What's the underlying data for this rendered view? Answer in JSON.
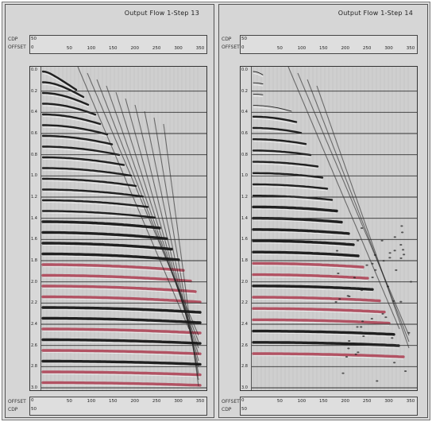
{
  "panels": [
    {
      "title": "Output Flow 1-Step 13",
      "header_rows": [
        "CDP",
        "OFFSET"
      ],
      "header_first": [
        "50",
        "0"
      ],
      "offset_ticks": [
        "0",
        "50",
        "100",
        "150",
        "200",
        "250",
        "300",
        "350"
      ],
      "time_ticks": [
        "0.0",
        "0.2",
        "0.4",
        "0.6",
        "0.8",
        "1.0",
        "1.2",
        "1.4",
        "1.6",
        "1.8",
        "2.0",
        "2.2",
        "2.4",
        "2.6",
        "2.8",
        "3.0"
      ],
      "footer_rows": [
        "OFFSET",
        "CDP"
      ],
      "footer_first": [
        "0",
        "50"
      ]
    },
    {
      "title": "Output Flow 1-Step 14",
      "header_rows": [
        "CDP",
        "OFFSET"
      ],
      "header_first": [
        "50",
        "0"
      ],
      "offset_ticks": [
        "0",
        "50",
        "100",
        "150",
        "200",
        "250",
        "300",
        "350"
      ],
      "time_ticks": [
        "0.0",
        "0.2",
        "0.4",
        "0.6",
        "0.8",
        "1.0",
        "1.2",
        "1.4",
        "1.6",
        "1.8",
        "2.0",
        "2.2",
        "2.4",
        "2.6",
        "2.8",
        "3.0"
      ],
      "footer_rows": [
        "OFFSET",
        "CDP"
      ],
      "footer_first": [
        "0",
        "50"
      ]
    }
  ],
  "colors": {
    "trough": "#111111",
    "peak_hi": "#b0485a",
    "background": "#cfcfcf",
    "timeline": "#333333"
  }
}
